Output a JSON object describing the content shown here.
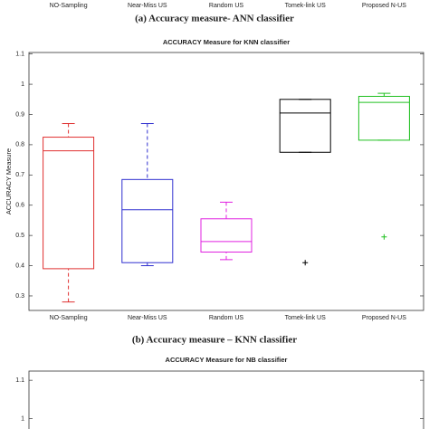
{
  "chart_data": [
    {
      "type": "boxplot",
      "caption": "(a) Accuracy measure- ANN classifier",
      "categories": [
        "NO-Sampling",
        "Near-Miss US",
        "Random US",
        "Tomek-link US",
        "Proposed N-US"
      ]
    },
    {
      "type": "boxplot",
      "title": "ACCURACY Measure for KNN classifier",
      "ylabel": "ACCURACY Measure",
      "caption": "(b) Accuracy measure – KNN classifier",
      "categories": [
        "NO-Sampling",
        "Near-Miss US",
        "Random US",
        "Tomek-link US",
        "Proposed N-US"
      ],
      "colors": [
        "#e03030",
        "#3030d0",
        "#e020e0",
        "#000000",
        "#20c020"
      ],
      "boxes": [
        {
          "low": 0.28,
          "q1": 0.39,
          "median": 0.78,
          "q3": 0.825,
          "high": 0.87,
          "outliers": []
        },
        {
          "low": 0.4,
          "q1": 0.41,
          "median": 0.585,
          "q3": 0.685,
          "high": 0.87,
          "outliers": []
        },
        {
          "low": 0.42,
          "q1": 0.445,
          "median": 0.48,
          "q3": 0.555,
          "high": 0.61,
          "outliers": []
        },
        {
          "low": 0.775,
          "q1": 0.775,
          "median": 0.905,
          "q3": 0.95,
          "high": 0.95,
          "outliers": [
            0.41
          ]
        },
        {
          "low": 0.815,
          "q1": 0.815,
          "median": 0.94,
          "q3": 0.96,
          "high": 0.97,
          "outliers": [
            0.495
          ]
        }
      ],
      "ylim": [
        0.252,
        1.105
      ],
      "yticks": [
        0.3,
        0.4,
        0.5,
        0.6,
        0.7,
        0.8,
        0.9,
        1,
        1.1
      ]
    },
    {
      "type": "boxplot",
      "title": "ACCURACY Measure for NB classifier",
      "ylim": [
        0.935,
        1.124
      ],
      "yticks": [
        1,
        1.1
      ]
    }
  ]
}
